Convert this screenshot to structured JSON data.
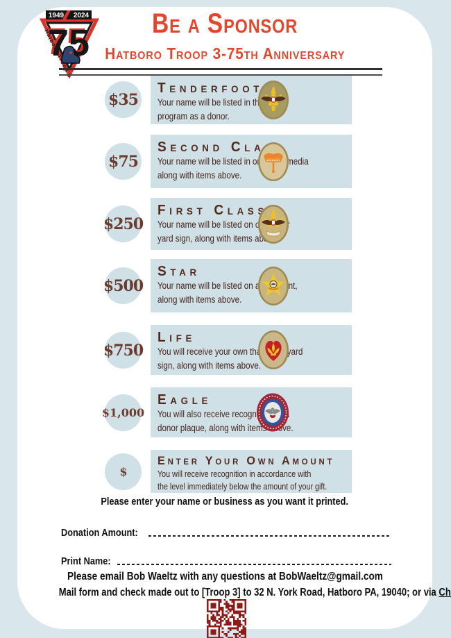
{
  "header": {
    "title": "Be a Sponsor",
    "subtitle": "Hatboro Troop 3-75th Anniversary"
  },
  "logo": {
    "year_left": "1949",
    "year_right": "2024",
    "number": "75",
    "troop": "Hatboro Troop 3"
  },
  "tiers": [
    {
      "amount": "$35",
      "name": "Tenderfoot",
      "badge": "tenderfoot",
      "description": "Your name will be listed in the\nprogram as a donor."
    },
    {
      "amount": "$75",
      "name": "Second Class",
      "badge": "second-class",
      "description": "Your name will be listed in on social media\nalong with items above."
    },
    {
      "amount": "$250",
      "name": "First Class",
      "badge": "first-class",
      "description": "Your name will be listed on our donor\nyard sign, along with items above."
    },
    {
      "amount": "$500",
      "name": "Star",
      "badge": "star",
      "description": "Your name will be listed on a table tent,\nalong with items above."
    },
    {
      "amount": "$750",
      "name": "Life",
      "badge": "life",
      "description": "You will receive your own thank you yard\nsign, along with items above."
    },
    {
      "amount": "$1,000",
      "name": "Eagle",
      "badge": "eagle",
      "description": "You will also receive recognition on a\ndonor plaque, along with items above."
    },
    {
      "amount": "$",
      "name": "Enter Your Own Amount",
      "badge": null,
      "description": "You will receive recognition in accordance with\nthe level immediately below the amount of your gift."
    }
  ],
  "form": {
    "note": "Please enter your name or business as you want it printed.",
    "donation_label": "Donation Amount:",
    "print_name_label": "Print Name:",
    "email_line": "Please email Bob Waeltz with any questions at BobWaeltz@gmail.com",
    "mail_prefix": "Mail form and check made out to [Troop 3] to 32 N. York Road, Hatboro PA, 19040; or via ",
    "mail_link": "Cheddar up",
    "mail_suffix": " ."
  },
  "colors": {
    "background": "#d9e6ec",
    "panel": "#cfe0e7",
    "accent_red": "#e2472e",
    "text_brown": "#46241c",
    "qr_red": "#8e1c16"
  }
}
